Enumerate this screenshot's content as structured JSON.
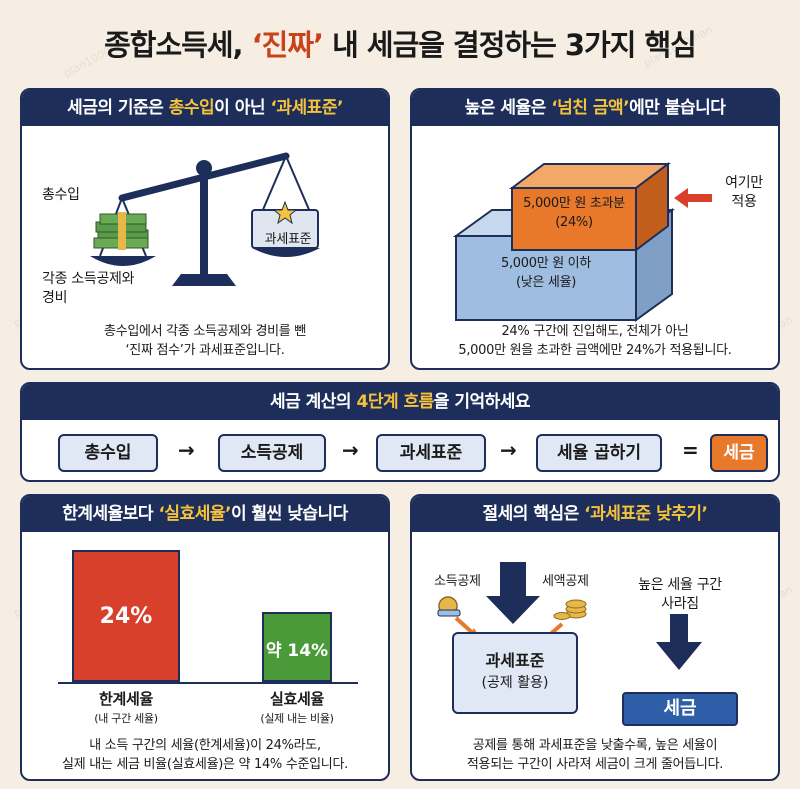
{
  "title": {
    "pre": "종합소득세, ",
    "highlight": "‘진짜’",
    "post": " 내 세금을 결정하는 3가지 핵심"
  },
  "watermark": "plan1000man",
  "panel1": {
    "heading_pre": "세금의 기준은 ",
    "heading_hl1": "총수입",
    "heading_mid": "이 아닌 ",
    "heading_hl2": "‘과세표준’",
    "label_income": "총수입",
    "label_deduct_1": "각종 소득공제와",
    "label_deduct_2": "경비",
    "label_taxbase": "과세표준",
    "caption_1": "총수입에서 각종 소득공제와 경비를 뺀",
    "caption_2": "‘진짜 점수’가 과세표준입니다."
  },
  "panel2": {
    "heading_pre": "높은 세율은 ",
    "heading_hl": "‘넘친 금액’",
    "heading_post": "에만 붙습니다",
    "top_block_1": "5,000만 원 초과분",
    "top_block_2": "(24%)",
    "bottom_block_1": "5,000만 원 이하",
    "bottom_block_2": "(낮은 세율)",
    "pointer_1": "여기만",
    "pointer_2": "적용",
    "caption_1": "24% 구간에 진입해도, 전체가 아닌",
    "caption_2": "5,000만 원을 초과한 금액에만 24%가 적용됩니다."
  },
  "panel3": {
    "heading_pre": "세금 계산의 ",
    "heading_hl": "4단계 흐름",
    "heading_post": "을 기억하세요",
    "steps": [
      "총수입",
      "소득공제",
      "과세표준",
      "세율 곱하기"
    ],
    "arrow": "→",
    "equals": "=",
    "result": "세금"
  },
  "panel4": {
    "heading_pre": "한계세율보다 ",
    "heading_hl": "‘실효세율’",
    "heading_post": "이 훨씬 낮습니다",
    "bar1_value": "24%",
    "bar2_value": "약 14%",
    "bar1_label": "한계세율",
    "bar1_sub": "(내 구간 세율)",
    "bar2_label": "실효세율",
    "bar2_sub": "(실제 내는 비율)",
    "caption_1": "내 소득 구간의 세율(한계세율)이 24%라도,",
    "caption_2": "실제 내는 세금 비율(실효세율)은 약 14% 수준입니다."
  },
  "panel5": {
    "heading_pre": "절세의 핵심은 ",
    "heading_hl": "‘과세표준 낮추기’",
    "label_income_deduct": "소득공제",
    "label_tax_credit": "세액공제",
    "box_1": "과세표준",
    "box_2": "(공제 활용)",
    "right_1": "높은 세율 구간",
    "right_2": "사라짐",
    "result": "세금",
    "caption_1": "공제를 통해 과세표준을 낮출수록, 높은 세율이",
    "caption_2": "적용되는 구간이 사라져 세금이 크게 줄어듭니다."
  },
  "colors": {
    "navy": "#1d2e5a",
    "accent_red": "#c8431c",
    "accent_yellow": "#f5c23c",
    "orange": "#e8782a",
    "blue_light": "#9ebde0",
    "bar_red": "#d8402c",
    "bar_green": "#4a9a3a"
  }
}
